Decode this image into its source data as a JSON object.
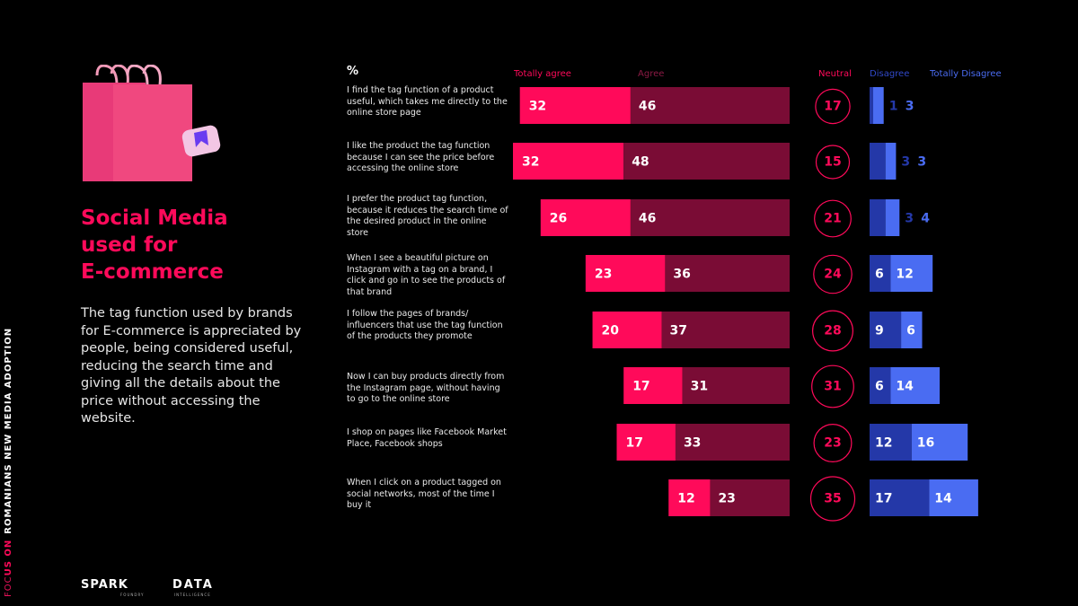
{
  "side_label": {
    "focus_a": "FOC",
    "focus_b": "US ON",
    "rest": "ROMANIANS NEW MEDIA ADOPTION"
  },
  "headline": {
    "lines": [
      "Social Media",
      "used for",
      "E-commerce"
    ]
  },
  "description": "The tag function used by brands for E-commerce is appreciated by people, being considered useful, reducing the search time and giving all the details about the price without accessing the website.",
  "logos": {
    "spark": "SPARK",
    "spark_sub": "FOUNDRY",
    "data": "DATA",
    "data_sub": "INTELLIGENCE"
  },
  "colors": {
    "totally_agree": "#ff0a5a",
    "agree": "#7a0c35",
    "neutral": "#ff0a5a",
    "disagree": "#2438a8",
    "totally_disagree": "#4a6cf2",
    "legend_agree": "#8a1a44",
    "legend_disagree": "#3048c8",
    "legend_totally_disagree": "#4a6cf2"
  },
  "chart_data": {
    "type": "bar",
    "unit_label": "%",
    "legend": [
      "Totally agree",
      "Agree",
      "Neutral",
      "Disagree",
      "Totally Disagree"
    ],
    "categories": [
      "I find the tag function of a product useful, which takes me directly to the online store page",
      "I like the product the tag function because I can see the price before accessing the online store",
      "I prefer the product tag function, because it reduces the search time of the desired product in the online store",
      "When I see a beautiful picture on Instagram with a tag on a brand, I click and go in to see the products of that brand",
      "I follow the pages of brands/ influencers that use the tag function of the products they promote",
      "Now I can buy products directly from the Instagram page, without having to go to the online store",
      "I shop on pages like Facebook Market Place, Facebook shops",
      "When I click on a product tagged on social networks, most of the time I buy it"
    ],
    "series": [
      {
        "name": "Totally agree",
        "values": [
          32,
          32,
          26,
          23,
          20,
          17,
          17,
          12
        ]
      },
      {
        "name": "Agree",
        "values": [
          46,
          48,
          46,
          36,
          37,
          31,
          33,
          23
        ]
      },
      {
        "name": "Neutral",
        "values": [
          17,
          15,
          21,
          24,
          28,
          31,
          23,
          35
        ]
      },
      {
        "name": "Disagree",
        "values": [
          1,
          3,
          3,
          6,
          9,
          6,
          12,
          17
        ]
      },
      {
        "name": "Totally Disagree",
        "values": [
          3,
          3,
          4,
          12,
          6,
          14,
          16,
          14
        ]
      }
    ]
  }
}
